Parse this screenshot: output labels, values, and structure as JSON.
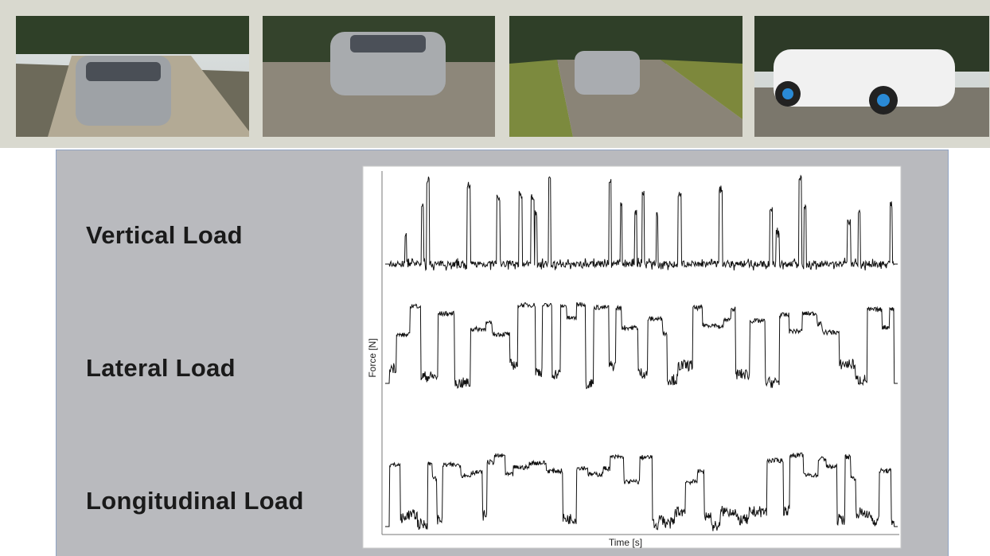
{
  "labels": [
    "Vertical Load",
    "Lateral Load",
    "Longitudinal Load"
  ],
  "plot": {
    "y_label": "Force [N]",
    "x_label": "Time [s]"
  }
}
